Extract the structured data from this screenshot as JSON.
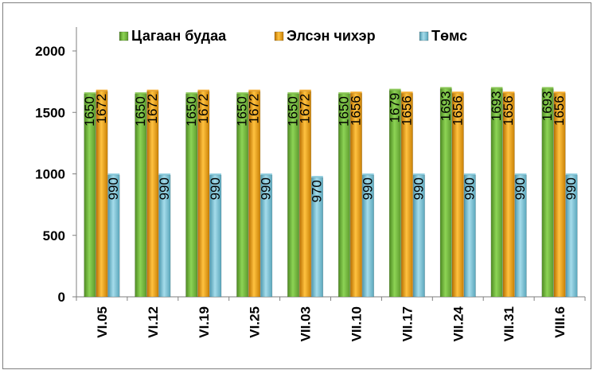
{
  "chart_data": {
    "type": "bar",
    "categories": [
      "VI.05",
      "VI.12",
      "VI.19",
      "VI.25",
      "VII.03",
      "VII.10",
      "VII.17",
      "VII.24",
      "VII.31",
      "VIII.6"
    ],
    "series": [
      {
        "name": "Цагаан будаа",
        "color": "#7cc142",
        "values": [
          1650,
          1650,
          1650,
          1650,
          1650,
          1650,
          1679,
          1693,
          1693,
          1693
        ]
      },
      {
        "name": "Элсэн чихэр",
        "color": "#f2a31a",
        "values": [
          1672,
          1672,
          1672,
          1672,
          1672,
          1656,
          1656,
          1656,
          1656,
          1656
        ]
      },
      {
        "name": "Төмс",
        "color": "#7fc5d8",
        "values": [
          990,
          990,
          990,
          990,
          970,
          990,
          990,
          990,
          990,
          990
        ]
      }
    ],
    "data_labels": [
      [
        "1650",
        "1650",
        "1650",
        "1650",
        "1650",
        "1650",
        "1679",
        "1693",
        "1693",
        "1693"
      ],
      [
        "1672",
        "1672",
        "1672",
        "1672",
        "1672",
        "1656",
        "1656",
        "1656",
        "1656",
        "1656"
      ],
      [
        "990",
        "990",
        "990",
        "990",
        "970",
        "990",
        "990",
        "990",
        "990",
        "990"
      ]
    ],
    "yticks": [
      "0",
      "500",
      "1000",
      "1500",
      "2000"
    ],
    "ylim": [
      0,
      2000
    ],
    "legend_position": "top",
    "grid": false
  }
}
